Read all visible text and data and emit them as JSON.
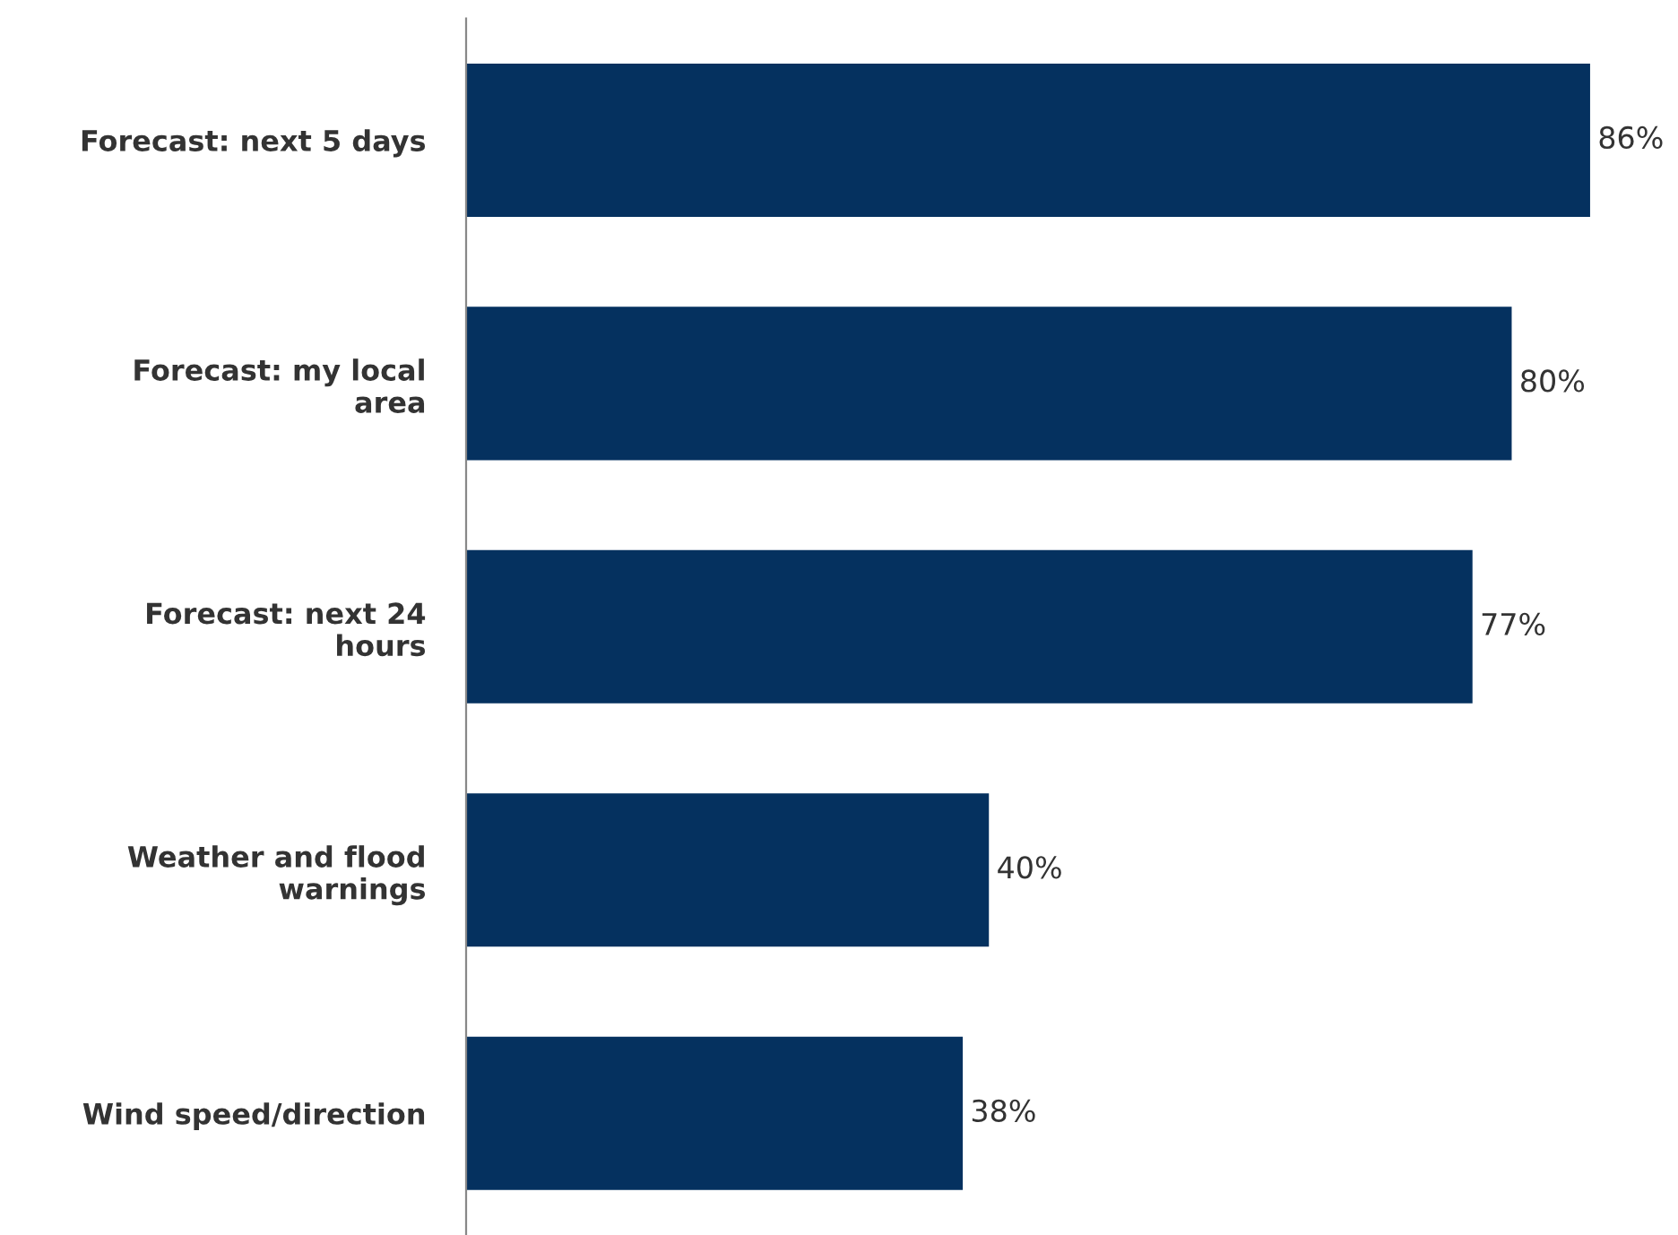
{
  "chart_data": {
    "type": "bar",
    "orientation": "horizontal",
    "categories": [
      "Forecast: next 5 days",
      "Forecast: my local area",
      "Forecast: next 24 hours",
      "Weather and flood warnings",
      "Wind speed/direction"
    ],
    "values": [
      86,
      80,
      77,
      40,
      38
    ],
    "value_labels": [
      "86%",
      "80%",
      "77%",
      "40%",
      "38%"
    ],
    "color": "#05315f",
    "grid": false,
    "legend": false
  }
}
